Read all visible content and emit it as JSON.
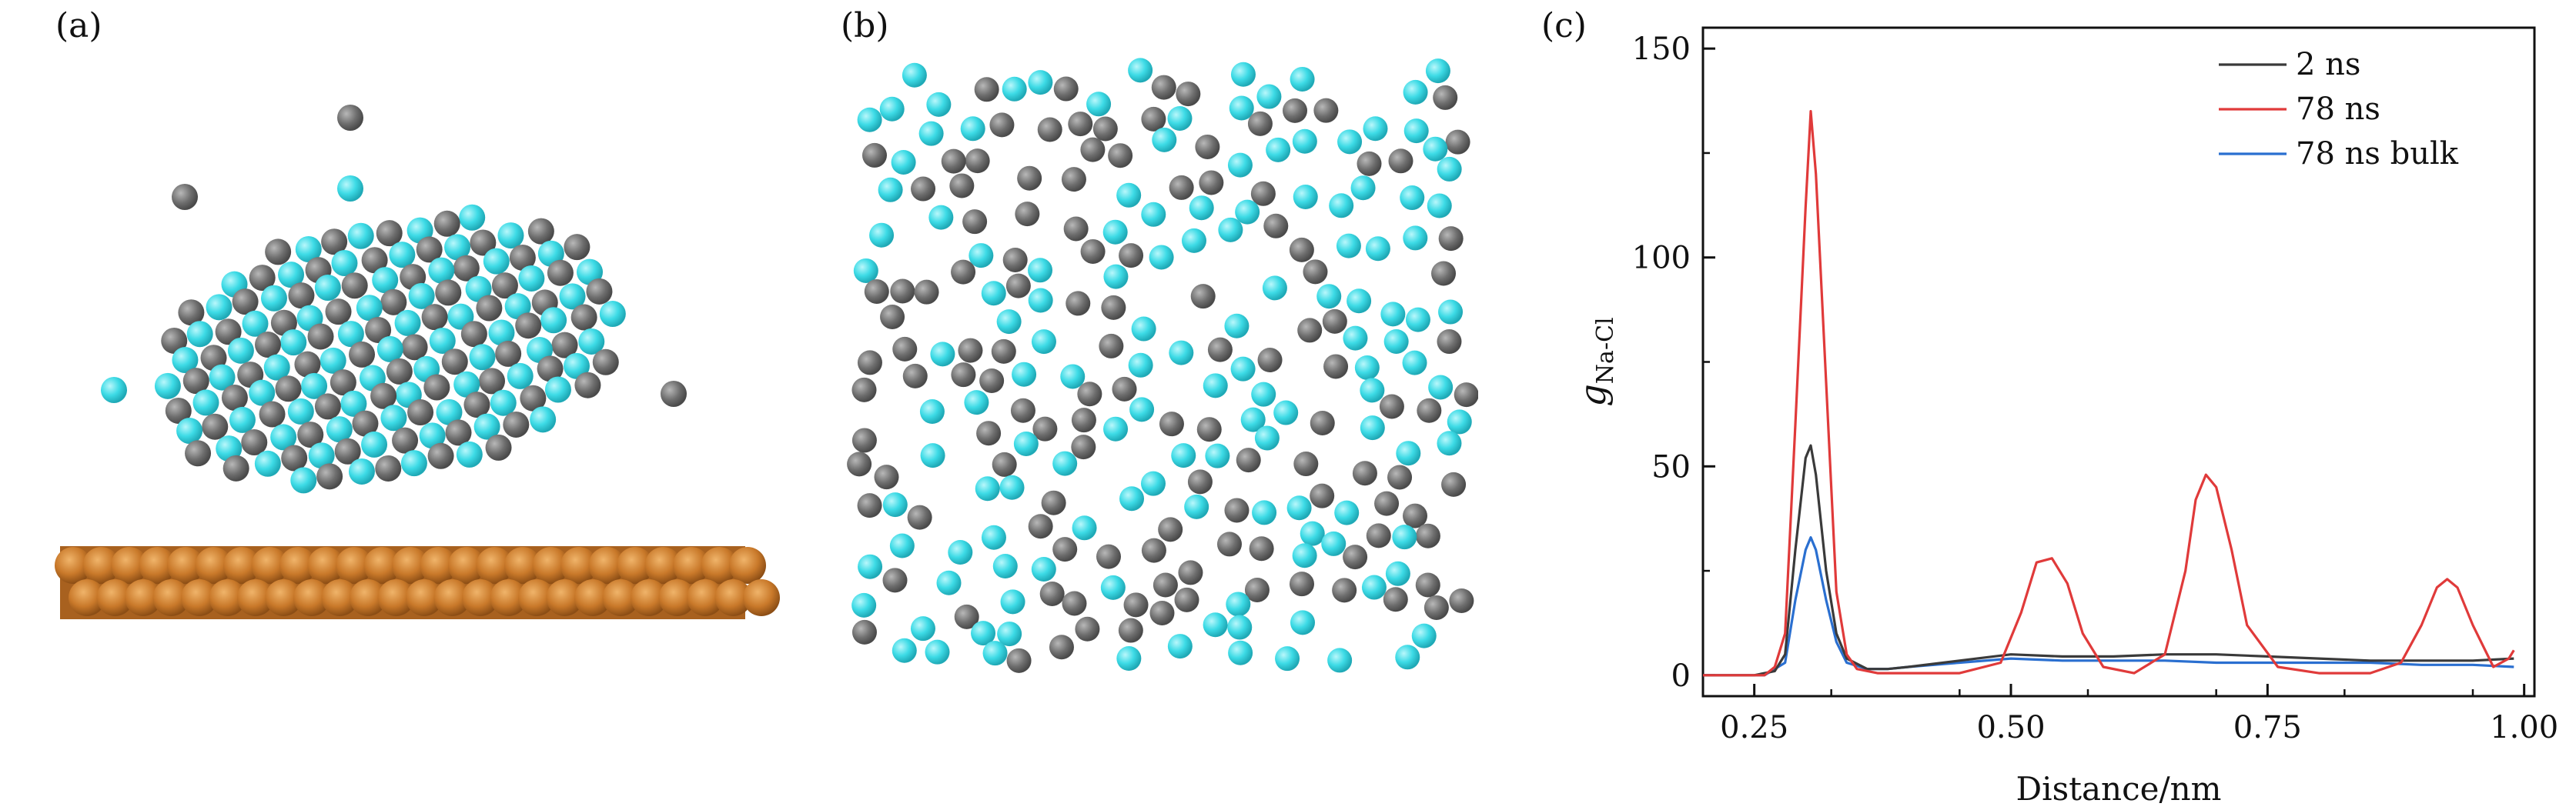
{
  "panels": {
    "a": {
      "label": "(a)",
      "description_colors": {
        "atom_gray": "#6f6f6f",
        "atom_cyan": "#38d9e4",
        "substrate": "#c77a2a"
      }
    },
    "b": {
      "label": "(b)"
    },
    "c": {
      "label": "(c)"
    }
  },
  "chart_data": {
    "type": "line",
    "title": "",
    "xlabel": "Distance/nm",
    "ylabel_main": "g",
    "ylabel_sub": "Na-Cl",
    "xlim": [
      0.2,
      1.01
    ],
    "ylim": [
      -5,
      155
    ],
    "xticks": [
      0.25,
      0.5,
      0.75,
      1.0
    ],
    "xtick_labels": [
      "0.25",
      "0.50",
      "0.75",
      "1.00"
    ],
    "yticks": [
      0,
      50,
      100,
      150
    ],
    "ytick_labels": [
      "0",
      "50",
      "100",
      "150"
    ],
    "grid": false,
    "legend_position": "top-right",
    "series": [
      {
        "name": "2 ns",
        "color": "#3a3a3a",
        "x": [
          0.2,
          0.25,
          0.27,
          0.28,
          0.29,
          0.3,
          0.305,
          0.31,
          0.32,
          0.33,
          0.34,
          0.36,
          0.38,
          0.4,
          0.45,
          0.5,
          0.55,
          0.6,
          0.65,
          0.7,
          0.75,
          0.8,
          0.85,
          0.9,
          0.95,
          0.99
        ],
        "y": [
          0,
          0,
          1,
          5,
          30,
          52,
          55,
          48,
          25,
          10,
          4,
          1.5,
          1.5,
          2,
          3.5,
          5,
          4.5,
          4.5,
          5,
          5,
          4.5,
          4,
          3.5,
          3.5,
          3.5,
          4
        ]
      },
      {
        "name": "78 ns",
        "color": "#e03a3a",
        "x": [
          0.2,
          0.26,
          0.27,
          0.28,
          0.29,
          0.3,
          0.305,
          0.31,
          0.32,
          0.33,
          0.34,
          0.35,
          0.37,
          0.4,
          0.45,
          0.49,
          0.51,
          0.525,
          0.54,
          0.555,
          0.57,
          0.59,
          0.62,
          0.65,
          0.67,
          0.68,
          0.69,
          0.7,
          0.715,
          0.73,
          0.76,
          0.8,
          0.85,
          0.88,
          0.9,
          0.915,
          0.925,
          0.935,
          0.95,
          0.97,
          0.985,
          0.99
        ],
        "y": [
          0,
          0,
          2,
          10,
          60,
          112,
          135,
          120,
          70,
          20,
          5,
          1.5,
          0.5,
          0.5,
          0.5,
          3,
          15,
          27,
          28,
          22,
          10,
          2,
          0.5,
          5,
          25,
          42,
          48,
          45,
          30,
          12,
          2,
          0.5,
          0.5,
          3,
          12,
          21,
          23,
          21,
          12,
          2,
          4,
          6
        ]
      },
      {
        "name": "78 ns bulk",
        "color": "#2a6fd0",
        "x": [
          0.2,
          0.26,
          0.28,
          0.29,
          0.3,
          0.305,
          0.31,
          0.32,
          0.33,
          0.34,
          0.36,
          0.38,
          0.4,
          0.45,
          0.5,
          0.55,
          0.6,
          0.65,
          0.7,
          0.75,
          0.8,
          0.85,
          0.9,
          0.95,
          0.99
        ],
        "y": [
          0,
          0,
          3,
          18,
          30,
          33,
          30,
          18,
          8,
          3,
          1.5,
          1.5,
          2,
          3,
          4,
          3.5,
          3.5,
          3.5,
          3,
          3,
          3,
          3,
          2.5,
          2.5,
          2
        ]
      }
    ]
  }
}
